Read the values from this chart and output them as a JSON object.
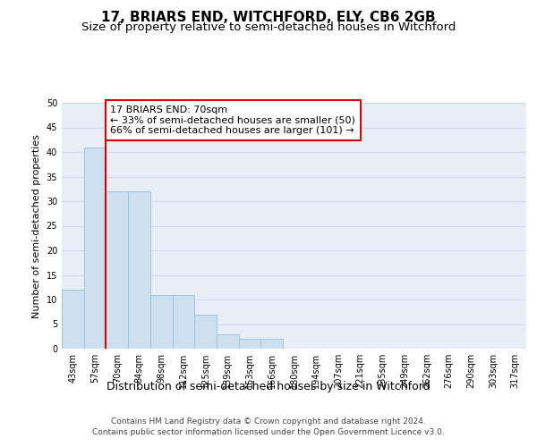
{
  "title": "17, BRIARS END, WITCHFORD, ELY, CB6 2GB",
  "subtitle": "Size of property relative to semi-detached houses in Witchford",
  "xlabel": "Distribution of semi-detached houses by size in Witchford",
  "ylabel": "Number of semi-detached properties",
  "categories": [
    "43sqm",
    "57sqm",
    "70sqm",
    "84sqm",
    "98sqm",
    "112sqm",
    "125sqm",
    "139sqm",
    "153sqm",
    "166sqm",
    "180sqm",
    "194sqm",
    "207sqm",
    "221sqm",
    "235sqm",
    "249sqm",
    "262sqm",
    "276sqm",
    "290sqm",
    "303sqm",
    "317sqm"
  ],
  "values": [
    12,
    41,
    32,
    32,
    11,
    11,
    7,
    3,
    2,
    2,
    0,
    0,
    0,
    0,
    0,
    0,
    0,
    0,
    0,
    0,
    0
  ],
  "bar_color": "#cce0f0",
  "bar_edge_color": "#a0c4e0",
  "highlight_line_index": 2,
  "highlight_line_color": "#cc0000",
  "annotation_text": "17 BRIARS END: 70sqm\n← 33% of semi-detached houses are smaller (50)\n66% of semi-detached houses are larger (101) →",
  "annotation_box_color": "#cc0000",
  "ylim": [
    0,
    50
  ],
  "yticks": [
    0,
    5,
    10,
    15,
    20,
    25,
    30,
    35,
    40,
    45,
    50
  ],
  "grid_color": "#d0d8e8",
  "background_color": "#e8eef8",
  "footer_text": "Contains HM Land Registry data © Crown copyright and database right 2024.\nContains public sector information licensed under the Open Government Licence v3.0.",
  "title_fontsize": 11,
  "subtitle_fontsize": 9.5,
  "xlabel_fontsize": 9,
  "ylabel_fontsize": 8,
  "tick_fontsize": 7,
  "annotation_fontsize": 8,
  "footer_fontsize": 6.5
}
